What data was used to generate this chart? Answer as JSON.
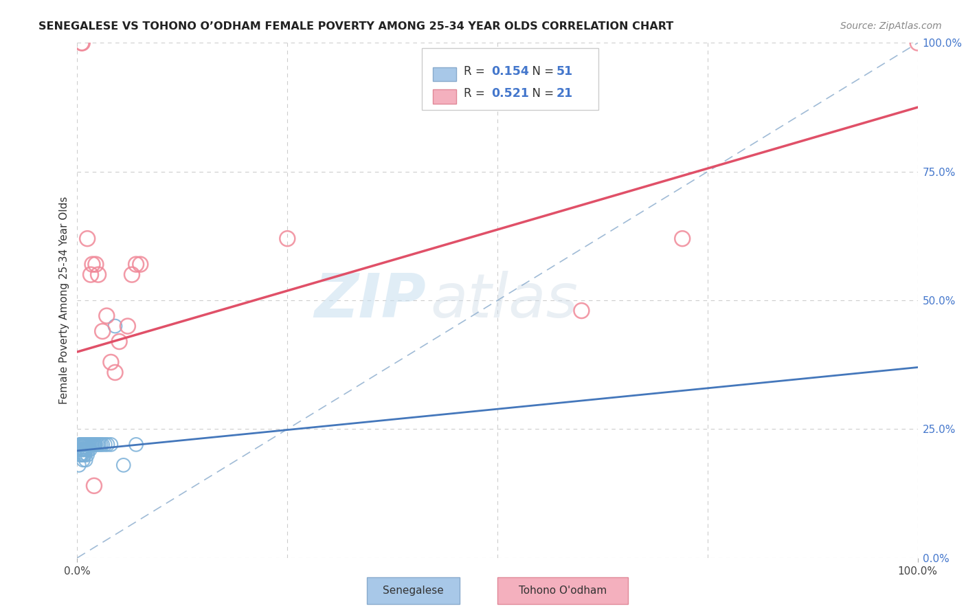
{
  "title": "SENEGALESE VS TOHONO O’ODHAM FEMALE POVERTY AMONG 25-34 YEAR OLDS CORRELATION CHART",
  "source": "Source: ZipAtlas.com",
  "ylabel": "Female Poverty Among 25-34 Year Olds",
  "background_color": "#ffffff",
  "grid_color": "#cccccc",
  "watermark_zip": "ZIP",
  "watermark_atlas": "atlas",
  "xlim": [
    0.0,
    1.0
  ],
  "ylim": [
    0.0,
    1.0
  ],
  "ytick_values": [
    0.0,
    0.25,
    0.5,
    0.75,
    1.0
  ],
  "ytick_labels": [
    "0.0%",
    "25.0%",
    "50.0%",
    "75.0%",
    "100.0%"
  ],
  "xtick_values": [
    0.0,
    1.0
  ],
  "xtick_labels": [
    "0.0%",
    "100.0%"
  ],
  "senegalese_color": "#7ab0d8",
  "tohono_color": "#f08898",
  "trend_senegalese_color": "#4477bb",
  "trend_tohono_color": "#e05068",
  "diagonal_color": "#88aacc",
  "legend_blue_color": "#a8c8e8",
  "legend_pink_color": "#f4b0be",
  "R_sen": 0.154,
  "N_sen": 51,
  "R_toh": 0.521,
  "N_toh": 21,
  "senegalese_x": [
    0.002,
    0.003,
    0.003,
    0.004,
    0.004,
    0.004,
    0.005,
    0.005,
    0.005,
    0.006,
    0.006,
    0.006,
    0.006,
    0.007,
    0.007,
    0.007,
    0.008,
    0.008,
    0.008,
    0.009,
    0.009,
    0.009,
    0.01,
    0.01,
    0.01,
    0.011,
    0.011,
    0.012,
    0.012,
    0.013,
    0.013,
    0.014,
    0.015,
    0.015,
    0.016,
    0.017,
    0.018,
    0.019,
    0.02,
    0.021,
    0.022,
    0.024,
    0.026,
    0.028,
    0.03,
    0.033,
    0.036,
    0.04,
    0.045,
    0.055,
    0.07
  ],
  "senegalese_y": [
    0.18,
    0.2,
    0.22,
    0.22,
    0.21,
    0.2,
    0.22,
    0.21,
    0.2,
    0.22,
    0.22,
    0.21,
    0.2,
    0.22,
    0.21,
    0.19,
    0.22,
    0.21,
    0.2,
    0.22,
    0.22,
    0.2,
    0.22,
    0.21,
    0.19,
    0.22,
    0.21,
    0.22,
    0.2,
    0.22,
    0.21,
    0.22,
    0.22,
    0.21,
    0.22,
    0.22,
    0.22,
    0.22,
    0.22,
    0.22,
    0.22,
    0.22,
    0.22,
    0.22,
    0.22,
    0.22,
    0.22,
    0.22,
    0.45,
    0.18,
    0.22
  ],
  "tohono_x": [
    0.005,
    0.006,
    0.012,
    0.016,
    0.018,
    0.02,
    0.022,
    0.025,
    0.03,
    0.035,
    0.04,
    0.045,
    0.05,
    0.06,
    0.065,
    0.07,
    0.075,
    0.25,
    0.6,
    0.72,
    1.0
  ],
  "tohono_y": [
    1.0,
    1.0,
    0.62,
    0.55,
    0.57,
    0.14,
    0.57,
    0.55,
    0.44,
    0.47,
    0.38,
    0.36,
    0.42,
    0.45,
    0.55,
    0.57,
    0.57,
    0.62,
    0.48,
    0.62,
    1.0
  ],
  "trend_sen_x0": 0.0,
  "trend_sen_y0": 0.208,
  "trend_sen_x1": 1.0,
  "trend_sen_y1": 0.37,
  "trend_toh_x0": 0.0,
  "trend_toh_y0": 0.4,
  "trend_toh_x1": 1.0,
  "trend_toh_y1": 0.875
}
